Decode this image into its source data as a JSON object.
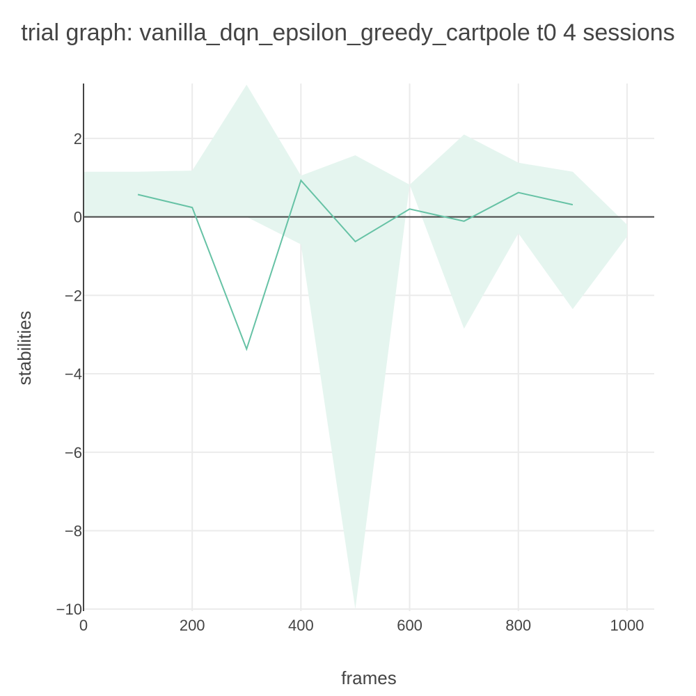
{
  "chart_data": {
    "type": "line",
    "title": "trial graph: vanilla_dqn_epsilon_greedy_cartpole t0 4 sessions",
    "xlabel": "frames",
    "ylabel": "stabilities",
    "xlim": [
      0,
      1050
    ],
    "ylim": [
      -10.05,
      3.4
    ],
    "xticks": [
      0,
      200,
      400,
      600,
      800,
      1000
    ],
    "yticks": [
      -10,
      -8,
      -6,
      -4,
      -2,
      0,
      2
    ],
    "grid": true,
    "zero_line": true,
    "colors": {
      "line": "#66c2a5",
      "band": "#e5f5ef",
      "grid": "#ebebeb",
      "axis": "#444444"
    },
    "series": [
      {
        "x": [
          100,
          200,
          300,
          400,
          500,
          600,
          700,
          800,
          900
        ],
        "values": [
          0.57,
          0.24,
          -3.37,
          0.93,
          -0.63,
          0.2,
          -0.11,
          0.62,
          0.31
        ]
      }
    ],
    "band": {
      "x": [
        0,
        100,
        200,
        300,
        400,
        500,
        600,
        700,
        800,
        900,
        1000
      ],
      "upper": [
        1.15,
        1.15,
        1.18,
        3.37,
        1.05,
        1.57,
        0.82,
        2.1,
        1.38,
        1.15,
        -0.2
      ],
      "lower": [
        0,
        0,
        0,
        0,
        -0.7,
        -10.0,
        0.82,
        -2.85,
        -0.42,
        -2.35,
        -0.5
      ]
    }
  }
}
